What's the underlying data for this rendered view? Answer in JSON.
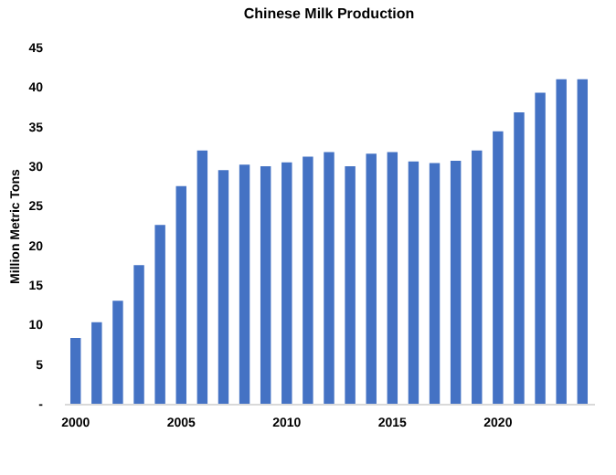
{
  "chart_data": {
    "type": "bar",
    "title": "Chinese Milk Production",
    "ylabel": "Million Metric Tons",
    "categories": [
      "2000",
      null,
      null,
      null,
      null,
      "2005",
      null,
      null,
      null,
      null,
      "2010",
      null,
      null,
      null,
      null,
      "2015",
      null,
      null,
      null,
      null,
      "2020",
      null,
      null,
      null,
      null
    ],
    "values": [
      8.3,
      10.3,
      13.0,
      17.5,
      22.6,
      27.5,
      32.0,
      29.5,
      30.2,
      30.0,
      30.5,
      31.2,
      31.8,
      30.0,
      31.6,
      31.8,
      30.6,
      30.4,
      30.7,
      32.0,
      34.4,
      36.8,
      39.3,
      41.0,
      41.0
    ],
    "color": "#4472c4",
    "ylim": [
      0,
      45
    ],
    "yticks": [
      {
        "value": 0,
        "label": "-"
      },
      5,
      10,
      15,
      20,
      25,
      30,
      35,
      40,
      45
    ],
    "grid": false
  }
}
